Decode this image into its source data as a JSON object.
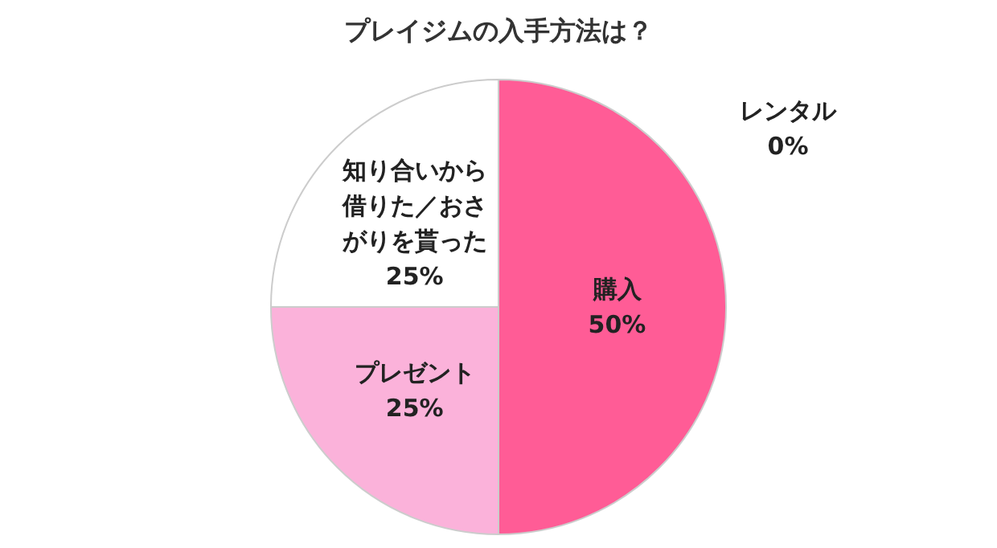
{
  "chart_data": {
    "type": "pie",
    "title": "プレイジムの入手方法は？",
    "categories": [
      "購入",
      "プレゼント",
      "知り合いから借りた／おさがりを貰った",
      "レンタル"
    ],
    "values": [
      50,
      25,
      25,
      0
    ],
    "colors": [
      "#ff5c96",
      "#fbb2da",
      "#ffffff",
      "#ffffff"
    ],
    "value_labels": [
      "50%",
      "25%",
      "25%",
      "0%"
    ],
    "legend": false
  }
}
